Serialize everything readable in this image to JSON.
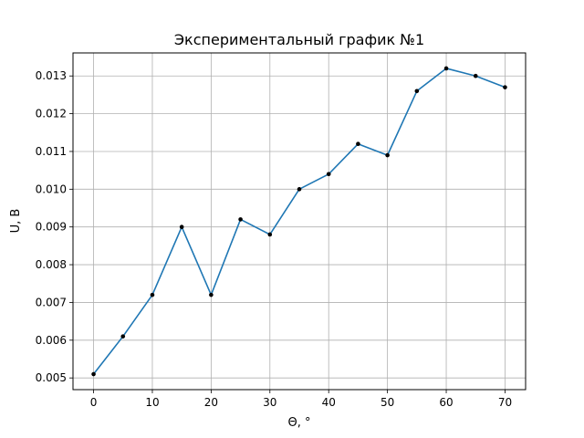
{
  "chart_data": {
    "type": "line",
    "title": "Экспериментальный график №1",
    "xlabel": "Θ, °",
    "ylabel": "U, В",
    "x": [
      0,
      5,
      10,
      15,
      20,
      25,
      30,
      35,
      40,
      45,
      50,
      55,
      60,
      65,
      70
    ],
    "series": [
      {
        "values": [
          0.0051,
          0.0061,
          0.0072,
          0.009,
          0.0072,
          0.0092,
          0.0088,
          0.01,
          0.0104,
          0.0112,
          0.0109,
          0.0126,
          0.0132,
          0.013,
          0.0127
        ],
        "line_color": "#1f77b4",
        "marker_color": "#000000"
      }
    ],
    "xlim": [
      -3.5,
      73.5
    ],
    "ylim": [
      0.00469,
      0.01361
    ],
    "x_ticks": [
      "0",
      "10",
      "20",
      "30",
      "40",
      "50",
      "60",
      "70"
    ],
    "y_ticks": [
      "0.005",
      "0.006",
      "0.007",
      "0.008",
      "0.009",
      "0.010",
      "0.011",
      "0.012",
      "0.013"
    ],
    "grid": true,
    "legend": "none"
  }
}
